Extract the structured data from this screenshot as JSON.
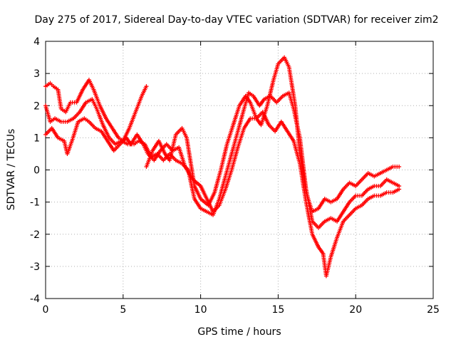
{
  "chart_data": {
    "type": "scatter",
    "title": "Day 275 of 2017, Sidereal Day-to-day VTEC variation (SDTVAR) for receiver zim2",
    "xlabel": "GPS time / hours",
    "ylabel": "SDTVAR / TECUs",
    "xlim": [
      0,
      25
    ],
    "ylim": [
      -4,
      4
    ],
    "xticks": [
      "0",
      "5",
      "10",
      "15",
      "20",
      "25"
    ],
    "yticks": [
      "-4",
      "-3",
      "-2",
      "-1",
      "0",
      "1",
      "2",
      "3",
      "4"
    ],
    "grid": true,
    "marker": "+",
    "color": "#ff0000",
    "series": [
      {
        "points": [
          [
            0.0,
            2.6
          ],
          [
            0.3,
            2.7
          ],
          [
            0.5,
            2.6
          ],
          [
            0.8,
            2.5
          ],
          [
            1.0,
            1.9
          ],
          [
            1.3,
            1.8
          ],
          [
            1.6,
            2.1
          ],
          [
            2.0,
            2.1
          ],
          [
            2.4,
            2.5
          ],
          [
            2.8,
            2.8
          ],
          [
            3.1,
            2.5
          ],
          [
            3.5,
            2.0
          ],
          [
            3.9,
            1.6
          ],
          [
            4.3,
            1.3
          ],
          [
            4.7,
            1.0
          ],
          [
            5.0,
            0.9
          ],
          [
            5.4,
            1.3
          ],
          [
            5.8,
            1.8
          ],
          [
            6.2,
            2.3
          ],
          [
            6.5,
            2.6
          ],
          [
            6.5,
            0.1
          ],
          [
            6.9,
            0.6
          ],
          [
            7.3,
            0.9
          ],
          [
            7.7,
            0.5
          ],
          [
            8.0,
            0.3
          ],
          [
            8.4,
            1.1
          ],
          [
            8.8,
            1.3
          ],
          [
            9.1,
            1.0
          ],
          [
            9.6,
            -0.5
          ],
          [
            10.0,
            -0.9
          ],
          [
            10.5,
            -1.1
          ],
          [
            10.9,
            -0.7
          ],
          [
            11.3,
            0.0
          ],
          [
            11.7,
            0.8
          ],
          [
            12.1,
            1.4
          ],
          [
            12.5,
            2.0
          ],
          [
            12.9,
            2.3
          ],
          [
            13.2,
            2.1
          ],
          [
            13.6,
            1.6
          ],
          [
            13.9,
            1.4
          ],
          [
            14.3,
            2.0
          ],
          [
            14.7,
            2.8
          ],
          [
            15.0,
            3.3
          ],
          [
            15.4,
            3.5
          ],
          [
            15.7,
            3.2
          ],
          [
            16.1,
            2.0
          ],
          [
            16.4,
            0.5
          ],
          [
            16.8,
            -0.7
          ],
          [
            17.2,
            -1.3
          ],
          [
            17.6,
            -1.2
          ],
          [
            18.0,
            -0.9
          ],
          [
            18.4,
            -1.0
          ],
          [
            18.8,
            -0.9
          ],
          [
            19.2,
            -0.6
          ],
          [
            19.6,
            -0.4
          ],
          [
            20.0,
            -0.5
          ],
          [
            20.4,
            -0.3
          ],
          [
            20.8,
            -0.1
          ],
          [
            21.2,
            -0.2
          ],
          [
            21.6,
            -0.1
          ],
          [
            22.0,
            0.0
          ],
          [
            22.4,
            0.1
          ],
          [
            22.8,
            0.1
          ]
        ]
      },
      {
        "points": [
          [
            0.0,
            2.0
          ],
          [
            0.3,
            1.5
          ],
          [
            0.6,
            1.6
          ],
          [
            1.0,
            1.5
          ],
          [
            1.4,
            1.5
          ],
          [
            1.8,
            1.6
          ],
          [
            2.2,
            1.8
          ],
          [
            2.6,
            2.1
          ],
          [
            3.0,
            2.2
          ],
          [
            3.3,
            1.9
          ],
          [
            3.7,
            1.4
          ],
          [
            4.1,
            1.0
          ],
          [
            4.5,
            0.8
          ],
          [
            4.9,
            0.9
          ],
          [
            5.3,
            0.8
          ],
          [
            5.7,
            0.8
          ],
          [
            6.0,
            0.9
          ],
          [
            6.4,
            0.8
          ],
          [
            6.8,
            0.4
          ],
          [
            7.2,
            0.5
          ],
          [
            7.6,
            0.3
          ],
          [
            8.0,
            0.5
          ],
          [
            8.4,
            0.3
          ],
          [
            8.8,
            0.2
          ],
          [
            9.2,
            0.0
          ],
          [
            9.6,
            -0.9
          ],
          [
            10.0,
            -1.2
          ],
          [
            10.4,
            -1.3
          ],
          [
            10.8,
            -1.4
          ],
          [
            11.2,
            -0.9
          ],
          [
            11.6,
            -0.2
          ],
          [
            12.0,
            0.5
          ],
          [
            12.4,
            1.2
          ],
          [
            12.8,
            1.9
          ],
          [
            13.1,
            2.4
          ],
          [
            13.4,
            2.3
          ],
          [
            13.8,
            2.0
          ],
          [
            14.1,
            2.2
          ],
          [
            14.5,
            2.3
          ],
          [
            14.9,
            2.1
          ],
          [
            15.3,
            2.3
          ],
          [
            15.7,
            2.4
          ],
          [
            16.0,
            1.9
          ],
          [
            16.4,
            1.0
          ],
          [
            16.8,
            -0.6
          ],
          [
            17.2,
            -1.6
          ],
          [
            17.6,
            -1.8
          ],
          [
            18.0,
            -1.6
          ],
          [
            18.4,
            -1.5
          ],
          [
            18.8,
            -1.6
          ],
          [
            19.2,
            -1.3
          ],
          [
            19.6,
            -1.0
          ],
          [
            20.0,
            -0.8
          ],
          [
            20.4,
            -0.8
          ],
          [
            20.8,
            -0.6
          ],
          [
            21.2,
            -0.5
          ],
          [
            21.6,
            -0.5
          ],
          [
            22.0,
            -0.3
          ],
          [
            22.4,
            -0.4
          ],
          [
            22.8,
            -0.5
          ]
        ]
      },
      {
        "points": [
          [
            0.0,
            1.1
          ],
          [
            0.4,
            1.3
          ],
          [
            0.8,
            1.0
          ],
          [
            1.2,
            0.9
          ],
          [
            1.4,
            0.5
          ],
          [
            1.7,
            0.9
          ],
          [
            2.1,
            1.5
          ],
          [
            2.5,
            1.6
          ],
          [
            2.8,
            1.5
          ],
          [
            3.2,
            1.3
          ],
          [
            3.6,
            1.2
          ],
          [
            4.0,
            0.9
          ],
          [
            4.4,
            0.6
          ],
          [
            4.8,
            0.8
          ],
          [
            5.2,
            1.0
          ],
          [
            5.5,
            0.8
          ],
          [
            5.9,
            1.1
          ],
          [
            6.3,
            0.8
          ],
          [
            6.6,
            0.5
          ],
          [
            7.0,
            0.3
          ],
          [
            7.4,
            0.6
          ],
          [
            7.8,
            0.8
          ],
          [
            8.2,
            0.6
          ],
          [
            8.6,
            0.7
          ],
          [
            9.0,
            0.1
          ],
          [
            9.5,
            -0.3
          ],
          [
            10.0,
            -0.5
          ],
          [
            10.4,
            -0.9
          ],
          [
            10.8,
            -1.3
          ],
          [
            11.2,
            -1.1
          ],
          [
            11.6,
            -0.6
          ],
          [
            12.0,
            0.0
          ],
          [
            12.4,
            0.7
          ],
          [
            12.8,
            1.3
          ],
          [
            13.2,
            1.6
          ],
          [
            13.6,
            1.6
          ],
          [
            14.0,
            1.8
          ],
          [
            14.4,
            1.4
          ],
          [
            14.8,
            1.2
          ],
          [
            15.2,
            1.5
          ],
          [
            15.6,
            1.2
          ],
          [
            16.0,
            0.9
          ],
          [
            16.4,
            0.2
          ],
          [
            16.8,
            -1.0
          ],
          [
            17.2,
            -2.0
          ],
          [
            17.6,
            -2.4
          ],
          [
            17.9,
            -2.6
          ],
          [
            18.1,
            -3.3
          ],
          [
            18.4,
            -2.7
          ],
          [
            18.8,
            -2.1
          ],
          [
            19.2,
            -1.6
          ],
          [
            19.6,
            -1.4
          ],
          [
            20.0,
            -1.2
          ],
          [
            20.4,
            -1.1
          ],
          [
            20.8,
            -0.9
          ],
          [
            21.2,
            -0.8
          ],
          [
            21.6,
            -0.8
          ],
          [
            22.0,
            -0.7
          ],
          [
            22.4,
            -0.7
          ],
          [
            22.8,
            -0.6
          ]
        ]
      }
    ]
  }
}
